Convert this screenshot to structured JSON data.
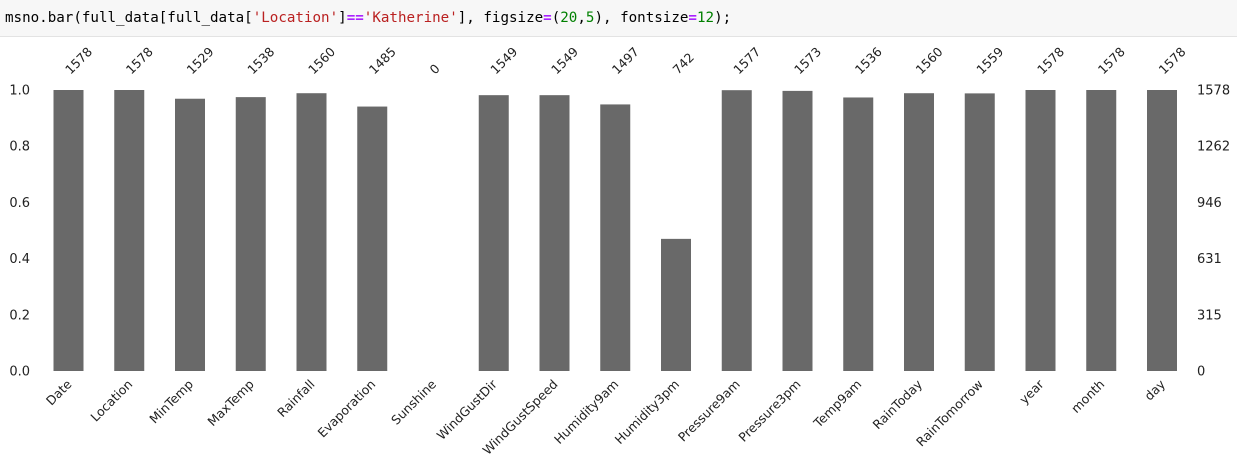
{
  "code_cell": {
    "tokens": [
      {
        "text": "msno.bar(full_data[full_data[",
        "kind": "plain"
      },
      {
        "text": "'Location'",
        "kind": "str"
      },
      {
        "text": "]",
        "kind": "plain"
      },
      {
        "text": "==",
        "kind": "op"
      },
      {
        "text": "'Katherine'",
        "kind": "str"
      },
      {
        "text": "], figsize",
        "kind": "plain"
      },
      {
        "text": "=",
        "kind": "op"
      },
      {
        "text": "(",
        "kind": "plain"
      },
      {
        "text": "20",
        "kind": "num"
      },
      {
        "text": ",",
        "kind": "plain"
      },
      {
        "text": "5",
        "kind": "num"
      },
      {
        "text": "), fontsize",
        "kind": "plain"
      },
      {
        "text": "=",
        "kind": "op"
      },
      {
        "text": "12",
        "kind": "num"
      },
      {
        "text": ");",
        "kind": "plain"
      }
    ]
  },
  "colors": {
    "bar": "#696969",
    "code_string": "#ba2121",
    "code_operator": "#aa22ff",
    "code_number": "#008000",
    "cell_background": "#f7f7f7"
  },
  "chart_data": {
    "type": "bar",
    "categories": [
      "Date",
      "Location",
      "MinTemp",
      "MaxTemp",
      "Rainfall",
      "Evaporation",
      "Sunshine",
      "WindGustDir",
      "WindGustSpeed",
      "Humidity9am",
      "Humidity3pm",
      "Pressure9am",
      "Pressure3pm",
      "Temp9am",
      "RainToday",
      "RainTomorrow",
      "year",
      "month",
      "day"
    ],
    "values": [
      1578,
      1578,
      1529,
      1538,
      1560,
      1485,
      0,
      1549,
      1549,
      1497,
      742,
      1577,
      1573,
      1536,
      1560,
      1559,
      1578,
      1578,
      1578
    ],
    "total": 1578,
    "ylim": [
      0,
      1.0
    ],
    "left_ticks": [
      "0.0",
      "0.2",
      "0.4",
      "0.6",
      "0.8",
      "1.0"
    ],
    "right_ticks": [
      "0",
      "315",
      "631",
      "946",
      "1262",
      "1578"
    ],
    "grid": false,
    "title": "",
    "xlabel": "",
    "ylabel": ""
  }
}
